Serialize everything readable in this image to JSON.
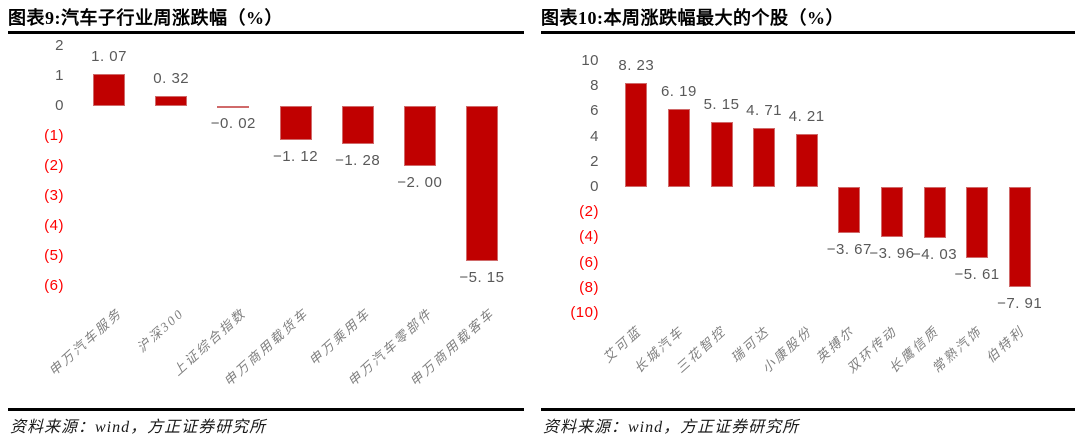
{
  "panels": [
    {
      "title": "图表9:汽车子行业周涨跌幅（%）",
      "source": "资料来源：wind，方正证券研究所"
    },
    {
      "title": "图表10:本周涨跌幅最大的个股（%）",
      "source": "资料来源：wind，方正证券研究所"
    }
  ],
  "colors": {
    "bar": "#c00000",
    "positive_tick": "#595959",
    "negative_tick": "#ff0000",
    "value_label": "#595959",
    "category_label": "#7f7f7f"
  },
  "chart_data": [
    {
      "type": "bar",
      "title": "图表9:汽车子行业周涨跌幅（%）",
      "source": "资料来源：wind，方正证券研究所",
      "categories": [
        "申万汽车服务",
        "沪深300",
        "上证综合指数",
        "申万商用载货车",
        "申万乘用车",
        "申万汽车零部件",
        "申万商用载客车"
      ],
      "values": [
        1.07,
        0.32,
        -0.02,
        -1.12,
        -1.28,
        -2.0,
        -5.15
      ],
      "value_labels": [
        "1. 07",
        "0. 32",
        "−0. 02",
        "−1. 12",
        "−1. 28",
        "−2. 00",
        "−5. 15"
      ],
      "yticks": [
        2,
        1,
        0,
        -1,
        -2,
        -3,
        -4,
        -5,
        -6
      ],
      "ytick_labels": [
        "2",
        "1",
        "0",
        "(1)",
        "(2)",
        "(3)",
        "(4)",
        "(5)",
        "(6)"
      ],
      "ylim": [
        -6,
        2
      ],
      "xlabel": "",
      "ylabel": "",
      "grid": false,
      "legend": false,
      "bar_color": "#c00000",
      "positive_tick_color": "#595959",
      "negative_tick_color": "#ff0000"
    },
    {
      "type": "bar",
      "title": "图表10:本周涨跌幅最大的个股（%）",
      "source": "资料来源：wind，方正证券研究所",
      "categories": [
        "艾可蓝",
        "长城汽车",
        "三花智控",
        "瑞可达",
        "小康股份",
        "英搏尔",
        "双环传动",
        "长鹰信质",
        "常熟汽饰",
        "伯特利"
      ],
      "values": [
        8.23,
        6.19,
        5.15,
        4.71,
        4.21,
        -3.67,
        -3.96,
        -4.03,
        -5.61,
        -7.91
      ],
      "value_labels": [
        "8. 23",
        "6. 19",
        "5. 15",
        "4. 71",
        "4. 21",
        "−3. 67",
        "−3. 96",
        "−4. 03",
        "−5. 61",
        "−7. 91"
      ],
      "yticks": [
        10,
        8,
        6,
        4,
        2,
        0,
        -2,
        -4,
        -6,
        -8,
        -10
      ],
      "ytick_labels": [
        "10",
        "8",
        "6",
        "4",
        "2",
        "0",
        "(2)",
        "(4)",
        "(6)",
        "(8)",
        "(10)"
      ],
      "ylim": [
        -10,
        10
      ],
      "xlabel": "",
      "ylabel": "",
      "grid": false,
      "legend": false,
      "bar_color": "#c00000",
      "positive_tick_color": "#595959",
      "negative_tick_color": "#ff0000"
    }
  ]
}
